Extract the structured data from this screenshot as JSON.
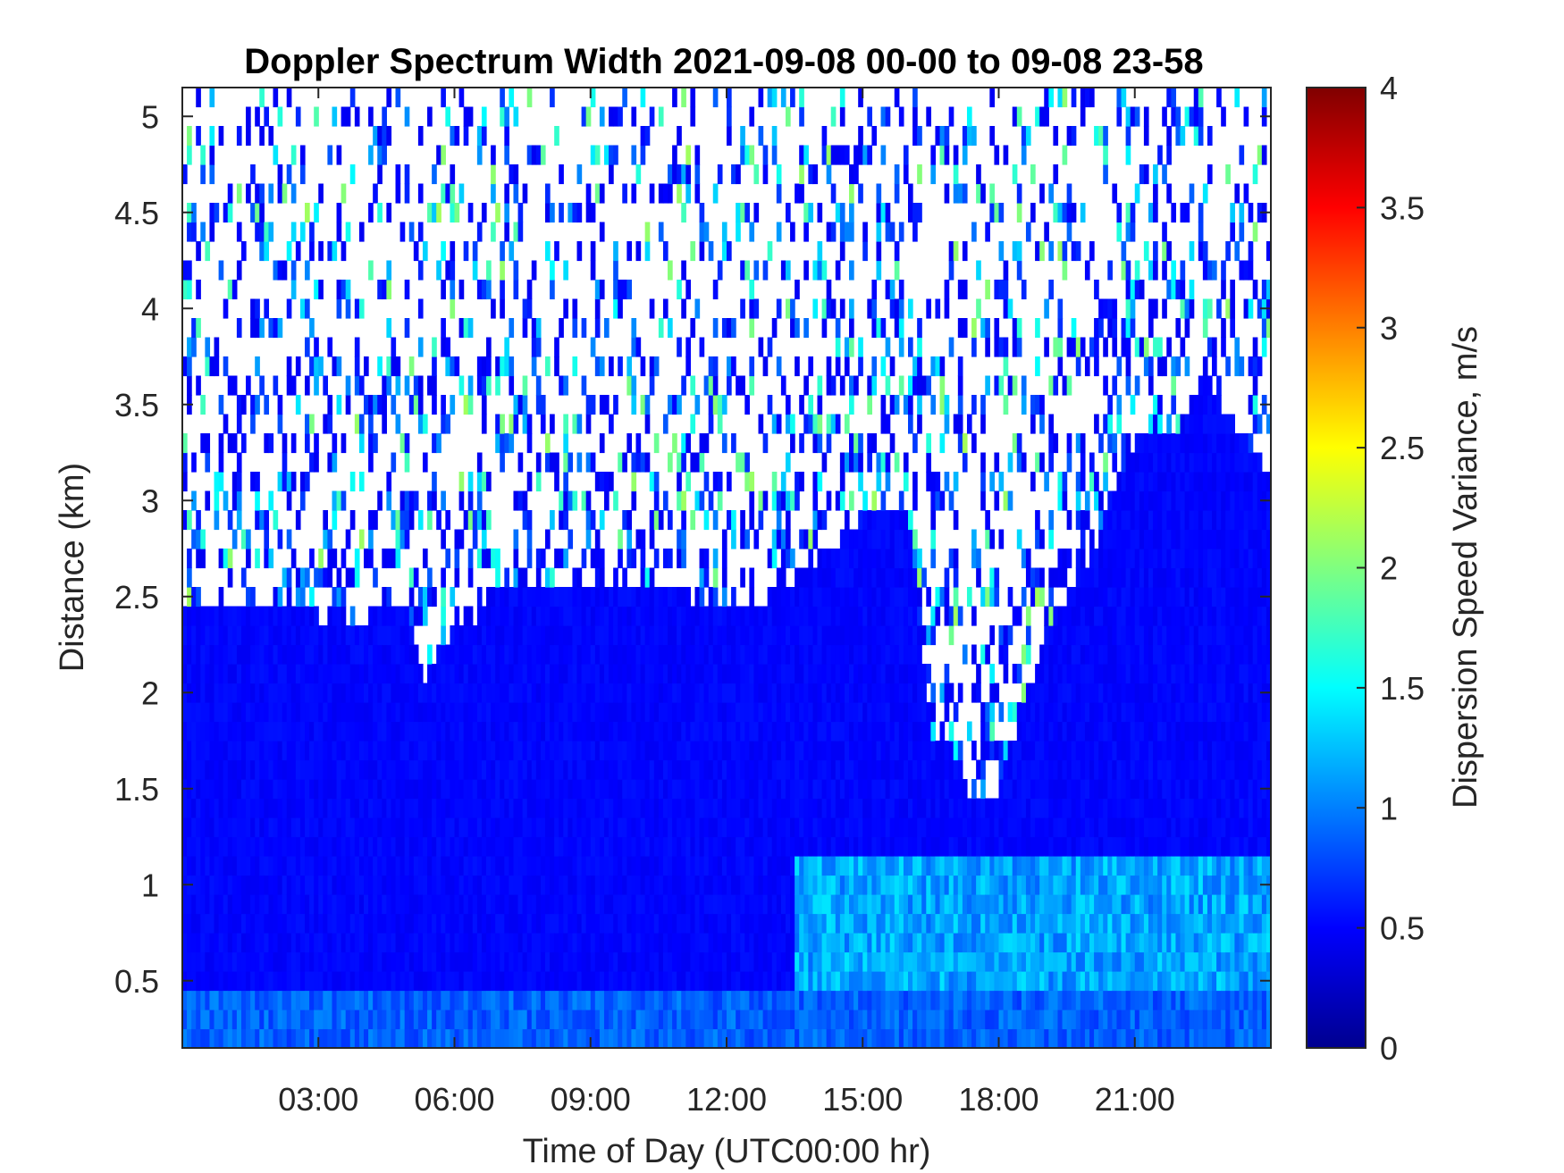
{
  "chart_data": {
    "type": "heatmap",
    "title": "Doppler Spectrum Width 2021-09-08 00-00 to 09-08 23-58",
    "xlabel": "Time of Day (UTC00:00 hr)",
    "ylabel": "Distance (km)",
    "colorbar_label": "Dispersion Speed Variance, m/s",
    "colormap": "jet",
    "xlim": [
      0,
      24
    ],
    "ylim": [
      0.15,
      5.15
    ],
    "clim": [
      0,
      4
    ],
    "x_ticks": [
      3,
      6,
      9,
      12,
      15,
      18,
      21
    ],
    "x_tick_labels": [
      "03:00",
      "06:00",
      "09:00",
      "12:00",
      "15:00",
      "18:00",
      "21:00"
    ],
    "y_ticks": [
      0.5,
      1,
      1.5,
      2,
      2.5,
      3,
      3.5,
      4,
      4.5,
      5
    ],
    "y_tick_labels": [
      "0.5",
      "1",
      "1.5",
      "2",
      "2.5",
      "3",
      "3.5",
      "4",
      "4.5",
      "5"
    ],
    "colorbar_ticks": [
      0,
      0.5,
      1,
      1.5,
      2,
      2.5,
      3,
      3.5,
      4
    ],
    "colorbar_tick_labels": [
      "0",
      "0.5",
      "1",
      "1.5",
      "2",
      "2.5",
      "3",
      "3.5",
      "4"
    ],
    "background_value_mps": 0.45,
    "near_ground_value_mps": 0.7,
    "afternoon_lower_layer_value_mps": 0.9,
    "dense_layer_top_km": {
      "hours": [
        0,
        2,
        3,
        3.3,
        5,
        5.3,
        6,
        6.5,
        7,
        9,
        12,
        13,
        14,
        15,
        16,
        16.5,
        17,
        17.5,
        18,
        19,
        20,
        21,
        22,
        22.5,
        23,
        24
      ],
      "top_km": [
        2.45,
        2.45,
        2.4,
        2.35,
        2.45,
        2.05,
        2.35,
        2.4,
        2.55,
        2.6,
        2.45,
        2.5,
        2.7,
        2.9,
        2.95,
        1.8,
        1.7,
        1.4,
        1.5,
        2.3,
        2.7,
        3.3,
        3.35,
        3.7,
        3.45,
        3.15
      ]
    }
  }
}
